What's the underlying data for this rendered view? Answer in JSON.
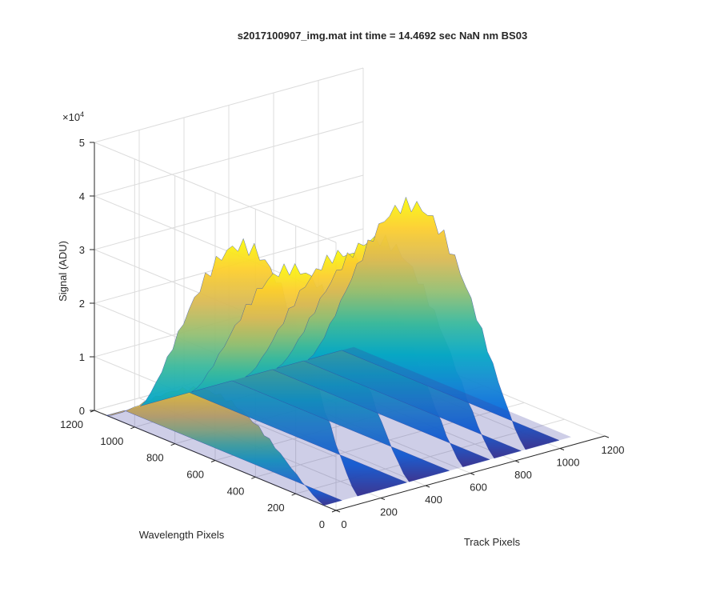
{
  "chart_data": {
    "type": "surface",
    "title": "s2017100907_img.mat int time = 14.4692 sec  NaN nm BS03",
    "xlabel": "Track Pixels",
    "ylabel": "Wavelength Pixels",
    "zlabel": "Signal (ADU)",
    "zlabel_exponent": "×10",
    "zlabel_exponent_power": "4",
    "xlim": [
      0,
      1200
    ],
    "ylim": [
      0,
      1200
    ],
    "zlim": [
      0,
      50000
    ],
    "x_ticks": [
      "0",
      "200",
      "400",
      "600",
      "800",
      "1000",
      "1200"
    ],
    "y_ticks": [
      "0",
      "200",
      "400",
      "600",
      "800",
      "1000",
      "1200"
    ],
    "z_ticks": [
      "0",
      "1",
      "2",
      "3",
      "4",
      "5"
    ],
    "grid": true,
    "colormap": "parula",
    "colormap_stops": [
      "#352a87",
      "#0363e1",
      "#1485d4",
      "#06a7c6",
      "#38b99e",
      "#92bf73",
      "#d9ba56",
      "#fcce2e",
      "#f9fb0e"
    ],
    "tracks": [
      {
        "x_start": 0,
        "x_end": 80,
        "peak": 12500
      },
      {
        "x_start": 150,
        "x_end": 370,
        "peak": 38000
      },
      {
        "x_start": 380,
        "x_end": 560,
        "peak": 31000
      },
      {
        "x_start": 620,
        "x_end": 740,
        "peak": 31000
      },
      {
        "x_start": 760,
        "x_end": 880,
        "peak": 32000
      },
      {
        "x_start": 900,
        "x_end": 1050,
        "peak": 37000
      }
    ]
  }
}
